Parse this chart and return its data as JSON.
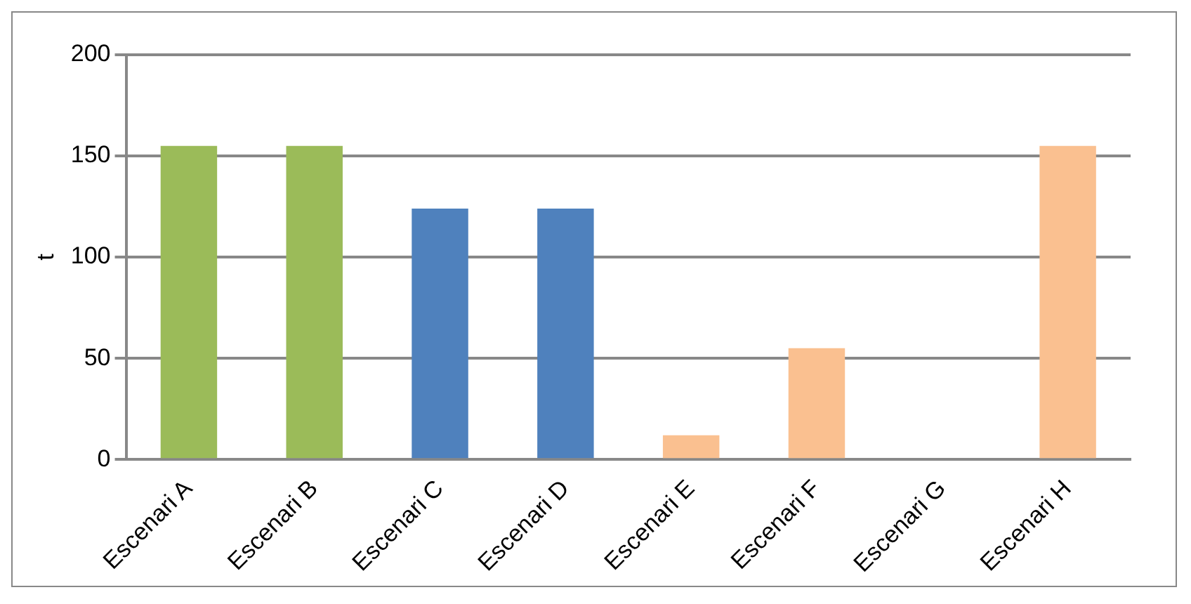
{
  "chart_data": {
    "type": "bar",
    "ylabel": "t",
    "categories": [
      "Escenari A",
      "Escenari B",
      "Escenari C",
      "Escenari D",
      "Escenari E",
      "Escenari F",
      "Escenari G",
      "Escenari H"
    ],
    "values": [
      155,
      155,
      124,
      124,
      12,
      55,
      0,
      155
    ],
    "colors": [
      "#9bbb59",
      "#9bbb59",
      "#4f81bd",
      "#4f81bd",
      "#fac090",
      "#fac090",
      "#fac090",
      "#fac090"
    ],
    "ylim": [
      0,
      200
    ],
    "yticks": [
      0,
      50,
      100,
      150,
      200
    ],
    "grid": "y",
    "legend": false
  }
}
